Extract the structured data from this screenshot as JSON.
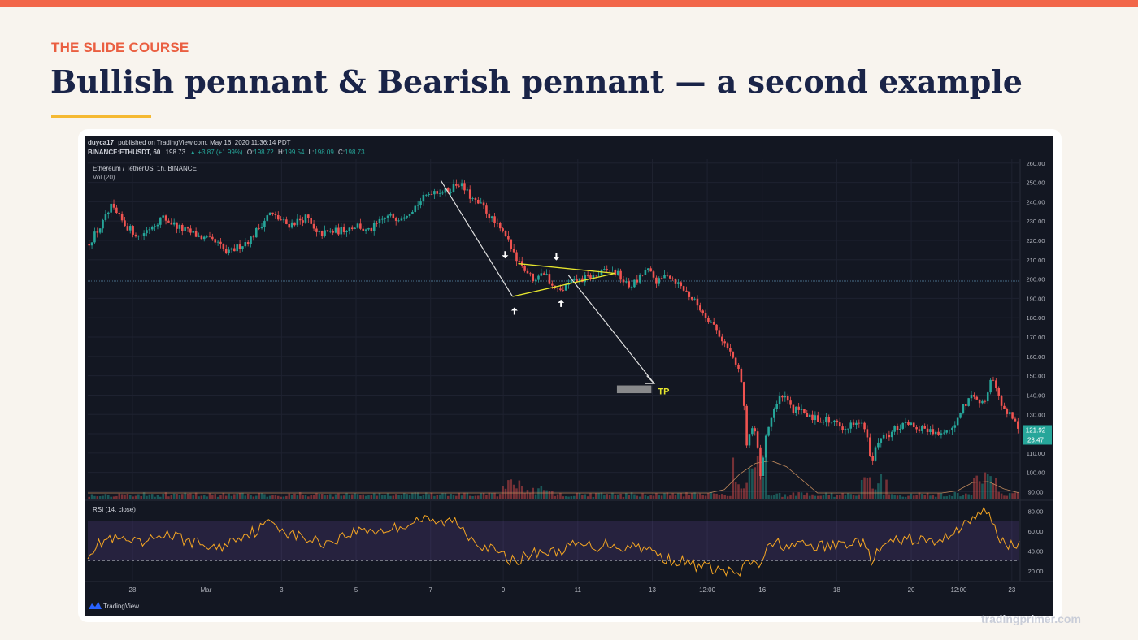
{
  "slide": {
    "kicker": "THE SLIDE COURSE",
    "title": "Bullish pennant & Bearish pennant — a second example",
    "footer": "tradingprimer.com"
  },
  "colors": {
    "accent": "#f26649",
    "title": "#1a2448",
    "underline": "#f5b932",
    "chart_bg": "#131722",
    "candle_up": "#26a69a",
    "candle_down": "#ef5350",
    "pennant": "#e6e62e",
    "rsi": "#f5a623"
  },
  "chart_data": {
    "type": "candlestick",
    "header": {
      "publisher": "duyca17",
      "published_text": "published on TradingView.com, May 16, 2020 11:36:14 PDT",
      "symbol_line": "BINANCE:ETHUSDT, 60",
      "last": "198.73",
      "change": "▲ +3.87 (+1.99%)",
      "ohlc": [
        "O:",
        "198.72",
        "H:",
        "199.54",
        "L:",
        "198.09",
        "C:",
        "198.73"
      ],
      "instrument": "Ethereum / TetherUS, 1h, BINANCE",
      "volume_label": "Vol (20)",
      "rsi_label": "RSI (14, close)",
      "brand": "TradingView"
    },
    "price_axis": {
      "ticks": [
        260,
        250,
        240,
        230,
        220,
        210,
        200,
        190,
        180,
        170,
        160,
        150,
        140,
        130,
        120,
        110,
        100,
        90
      ],
      "tick_labels": [
        "260.00",
        "250.00",
        "240.00",
        "230.00",
        "220.00",
        "210.00",
        "200.00",
        "190.00",
        "180.00",
        "170.00",
        "160.00",
        "150.00",
        "140.00",
        "130.00",
        "120.00",
        "110.00",
        "100.00",
        "90.00"
      ],
      "range": [
        86,
        262
      ],
      "current_price": "121.92",
      "countdown": "23:47"
    },
    "rsi_axis": {
      "ticks": [
        80,
        60,
        40,
        20
      ],
      "tick_labels": [
        "80.00",
        "60.00",
        "40.00",
        "20.00"
      ],
      "range": [
        10,
        90
      ],
      "bands": [
        70,
        30
      ]
    },
    "time_axis": {
      "labels": [
        {
          "t": 0.048,
          "text": "28"
        },
        {
          "t": 0.127,
          "text": "Mar"
        },
        {
          "t": 0.208,
          "text": "3"
        },
        {
          "t": 0.288,
          "text": "5"
        },
        {
          "t": 0.368,
          "text": "7"
        },
        {
          "t": 0.446,
          "text": "9"
        },
        {
          "t": 0.526,
          "text": "11"
        },
        {
          "t": 0.606,
          "text": "13"
        },
        {
          "t": 0.665,
          "text": "12:00"
        },
        {
          "t": 0.724,
          "text": "16"
        },
        {
          "t": 0.804,
          "text": "18"
        },
        {
          "t": 0.884,
          "text": "20"
        },
        {
          "t": 0.935,
          "text": "12:00"
        },
        {
          "t": 0.992,
          "text": "23"
        }
      ]
    },
    "price_path": [
      [
        0.0,
        218
      ],
      [
        0.015,
        228
      ],
      [
        0.025,
        237
      ],
      [
        0.04,
        228
      ],
      [
        0.055,
        222
      ],
      [
        0.08,
        232
      ],
      [
        0.1,
        226
      ],
      [
        0.12,
        222
      ],
      [
        0.14,
        218
      ],
      [
        0.15,
        213
      ],
      [
        0.175,
        221
      ],
      [
        0.195,
        234
      ],
      [
        0.215,
        228
      ],
      [
        0.235,
        232
      ],
      [
        0.245,
        223
      ],
      [
        0.27,
        225
      ],
      [
        0.29,
        228
      ],
      [
        0.3,
        224
      ],
      [
        0.32,
        232
      ],
      [
        0.335,
        232
      ],
      [
        0.35,
        237
      ],
      [
        0.37,
        246
      ],
      [
        0.385,
        245
      ],
      [
        0.398,
        250
      ],
      [
        0.415,
        240
      ],
      [
        0.425,
        237
      ],
      [
        0.435,
        230
      ],
      [
        0.448,
        222
      ],
      [
        0.458,
        213
      ],
      [
        0.468,
        206
      ],
      [
        0.478,
        200
      ],
      [
        0.488,
        205
      ],
      [
        0.498,
        197
      ],
      [
        0.506,
        193
      ],
      [
        0.518,
        198
      ],
      [
        0.532,
        200
      ],
      [
        0.546,
        202
      ],
      [
        0.56,
        205
      ],
      [
        0.57,
        202
      ],
      [
        0.58,
        196
      ],
      [
        0.59,
        199
      ],
      [
        0.6,
        205
      ],
      [
        0.612,
        198
      ],
      [
        0.622,
        203
      ],
      [
        0.633,
        198
      ],
      [
        0.643,
        193
      ],
      [
        0.652,
        188
      ],
      [
        0.662,
        182
      ],
      [
        0.672,
        176
      ],
      [
        0.682,
        168
      ],
      [
        0.692,
        160
      ],
      [
        0.7,
        152
      ],
      [
        0.704,
        135
      ],
      [
        0.708,
        112
      ],
      [
        0.712,
        125
      ],
      [
        0.718,
        117
      ],
      [
        0.722,
        98
      ],
      [
        0.728,
        120
      ],
      [
        0.736,
        132
      ],
      [
        0.745,
        140
      ],
      [
        0.755,
        133
      ],
      [
        0.768,
        131
      ],
      [
        0.782,
        128
      ],
      [
        0.796,
        127
      ],
      [
        0.806,
        124
      ],
      [
        0.816,
        123
      ],
      [
        0.826,
        128
      ],
      [
        0.834,
        123
      ],
      [
        0.842,
        105
      ],
      [
        0.848,
        116
      ],
      [
        0.86,
        120
      ],
      [
        0.872,
        124
      ],
      [
        0.884,
        124
      ],
      [
        0.896,
        123
      ],
      [
        0.908,
        121
      ],
      [
        0.92,
        120
      ],
      [
        0.932,
        125
      ],
      [
        0.942,
        136
      ],
      [
        0.952,
        141
      ],
      [
        0.962,
        135
      ],
      [
        0.97,
        150
      ],
      [
        0.978,
        138
      ],
      [
        0.986,
        132
      ],
      [
        0.994,
        128
      ],
      [
        1.0,
        122
      ]
    ],
    "rsi_path": [
      [
        0.0,
        38
      ],
      [
        0.02,
        52
      ],
      [
        0.04,
        50
      ],
      [
        0.06,
        46
      ],
      [
        0.08,
        58
      ],
      [
        0.1,
        52
      ],
      [
        0.12,
        47
      ],
      [
        0.14,
        42
      ],
      [
        0.16,
        54
      ],
      [
        0.18,
        60
      ],
      [
        0.198,
        70
      ],
      [
        0.215,
        58
      ],
      [
        0.235,
        52
      ],
      [
        0.255,
        48
      ],
      [
        0.275,
        55
      ],
      [
        0.295,
        62
      ],
      [
        0.315,
        60
      ],
      [
        0.335,
        64
      ],
      [
        0.355,
        72
      ],
      [
        0.375,
        68
      ],
      [
        0.395,
        70
      ],
      [
        0.41,
        55
      ],
      [
        0.425,
        45
      ],
      [
        0.44,
        38
      ],
      [
        0.455,
        30
      ],
      [
        0.47,
        34
      ],
      [
        0.485,
        40
      ],
      [
        0.5,
        38
      ],
      [
        0.515,
        44
      ],
      [
        0.53,
        46
      ],
      [
        0.545,
        44
      ],
      [
        0.56,
        48
      ],
      [
        0.575,
        43
      ],
      [
        0.59,
        46
      ],
      [
        0.605,
        40
      ],
      [
        0.62,
        32
      ],
      [
        0.635,
        30
      ],
      [
        0.65,
        26
      ],
      [
        0.662,
        24
      ],
      [
        0.672,
        22
      ],
      [
        0.682,
        20
      ],
      [
        0.692,
        18
      ],
      [
        0.7,
        17
      ],
      [
        0.71,
        30
      ],
      [
        0.72,
        24
      ],
      [
        0.728,
        40
      ],
      [
        0.74,
        48
      ],
      [
        0.755,
        44
      ],
      [
        0.77,
        46
      ],
      [
        0.785,
        44
      ],
      [
        0.8,
        45
      ],
      [
        0.815,
        48
      ],
      [
        0.83,
        50
      ],
      [
        0.842,
        30
      ],
      [
        0.855,
        46
      ],
      [
        0.87,
        50
      ],
      [
        0.885,
        52
      ],
      [
        0.9,
        50
      ],
      [
        0.915,
        48
      ],
      [
        0.928,
        60
      ],
      [
        0.942,
        66
      ],
      [
        0.952,
        76
      ],
      [
        0.962,
        78
      ],
      [
        0.97,
        74
      ],
      [
        0.978,
        52
      ],
      [
        0.986,
        48
      ],
      [
        0.994,
        46
      ],
      [
        1.0,
        44
      ]
    ],
    "annotations": {
      "tp_label": "TP"
    }
  }
}
